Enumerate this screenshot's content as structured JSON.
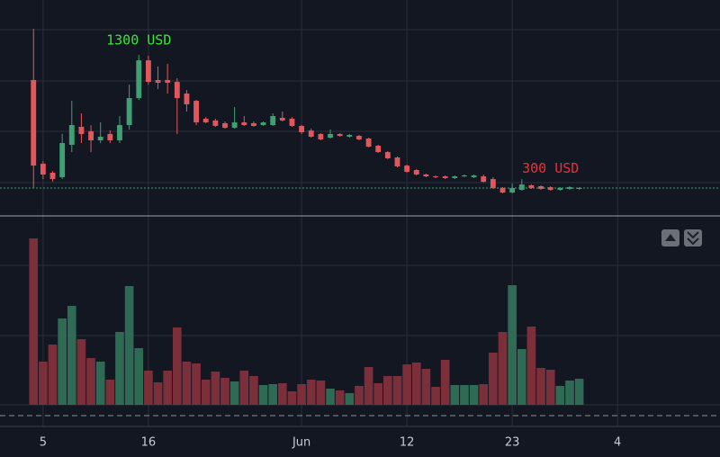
{
  "chart_data": {
    "type": "candlestick",
    "x": [
      0,
      1,
      2,
      3,
      4,
      5,
      6,
      7,
      8,
      9,
      10,
      11,
      12,
      13,
      14,
      15,
      16,
      17,
      18,
      19,
      20,
      21,
      22,
      23,
      24,
      25,
      26,
      27,
      28,
      29,
      30,
      31,
      32,
      33,
      34,
      35,
      36,
      37,
      38,
      39,
      40,
      41,
      42,
      43,
      44,
      45,
      46,
      47,
      48,
      49,
      50,
      51,
      52,
      53,
      54,
      55,
      56,
      57
    ],
    "open": [
      1107,
      487,
      420,
      387,
      627,
      760,
      727,
      660,
      707,
      660,
      773,
      973,
      1253,
      1107,
      1107,
      1093,
      1007,
      953,
      820,
      807,
      787,
      753,
      793,
      787,
      773,
      773,
      827,
      820,
      767,
      733,
      707,
      680,
      707,
      687,
      693,
      673,
      620,
      573,
      533,
      473,
      440,
      407,
      393,
      393,
      380,
      393,
      387,
      393,
      373,
      307,
      273,
      293,
      327,
      320,
      313,
      293,
      300,
      300
    ],
    "high": [
      1487,
      507,
      433,
      707,
      953,
      860,
      773,
      793,
      733,
      840,
      1073,
      1293,
      1287,
      1207,
      1227,
      1120,
      1033,
      960,
      833,
      820,
      800,
      907,
      840,
      800,
      800,
      860,
      873,
      833,
      773,
      747,
      713,
      740,
      713,
      707,
      700,
      680,
      627,
      580,
      540,
      480,
      447,
      413,
      400,
      400,
      400,
      407,
      407,
      407,
      387,
      313,
      340,
      373,
      333,
      327,
      320,
      313,
      320,
      313
    ],
    "low": [
      307,
      373,
      353,
      373,
      573,
      640,
      573,
      640,
      640,
      640,
      740,
      960,
      1073,
      1040,
      1007,
      707,
      873,
      773,
      787,
      760,
      747,
      747,
      767,
      760,
      767,
      767,
      800,
      760,
      707,
      680,
      660,
      673,
      687,
      680,
      660,
      607,
      567,
      520,
      460,
      420,
      400,
      387,
      380,
      373,
      373,
      387,
      380,
      347,
      300,
      267,
      267,
      287,
      300,
      293,
      287,
      287,
      293,
      293
    ],
    "close": [
      473,
      407,
      373,
      640,
      773,
      707,
      660,
      687,
      660,
      773,
      973,
      1253,
      1093,
      1087,
      1087,
      973,
      927,
      793,
      793,
      767,
      753,
      793,
      773,
      767,
      793,
      840,
      807,
      767,
      720,
      687,
      667,
      707,
      693,
      700,
      667,
      613,
      573,
      527,
      467,
      427,
      407,
      393,
      387,
      380,
      393,
      400,
      400,
      353,
      307,
      273,
      307,
      333,
      307,
      300,
      293,
      307,
      313,
      307
    ],
    "volume": [
      185,
      48,
      67,
      96,
      110,
      73,
      52,
      48,
      28,
      81,
      132,
      63,
      38,
      25,
      38,
      86,
      48,
      46,
      28,
      37,
      30,
      26,
      38,
      32,
      22,
      23,
      24,
      15,
      23,
      28,
      27,
      18,
      16,
      13,
      21,
      42,
      24,
      32,
      32,
      45,
      47,
      40,
      20,
      50,
      22,
      22,
      22,
      23,
      58,
      81,
      133,
      62,
      87,
      41,
      39,
      21,
      27,
      29
    ],
    "up_color": "#3fa173",
    "down_color": "#e0585d",
    "up_volume_color": "#2f6a55",
    "down_volume_color": "#7b2f3a",
    "xlim": [
      -3.5,
      71.7
    ],
    "xticks": [
      {
        "value": 1,
        "label": "5"
      },
      {
        "value": 12,
        "label": "16"
      },
      {
        "value": 28,
        "label": "Jun"
      },
      {
        "value": 39,
        "label": "12"
      },
      {
        "value": 50,
        "label": "23"
      },
      {
        "value": 61,
        "label": "4"
      }
    ],
    "ylim": [
      100,
      1700
    ],
    "volume_ylim": [
      0,
      200
    ],
    "annotations": [
      {
        "text": "1300 USD",
        "x": 11,
        "y": 1400,
        "color": "#39e639"
      },
      {
        "text": "300 USD",
        "x": 54,
        "y": 450,
        "color": "#e8323c"
      }
    ]
  }
}
